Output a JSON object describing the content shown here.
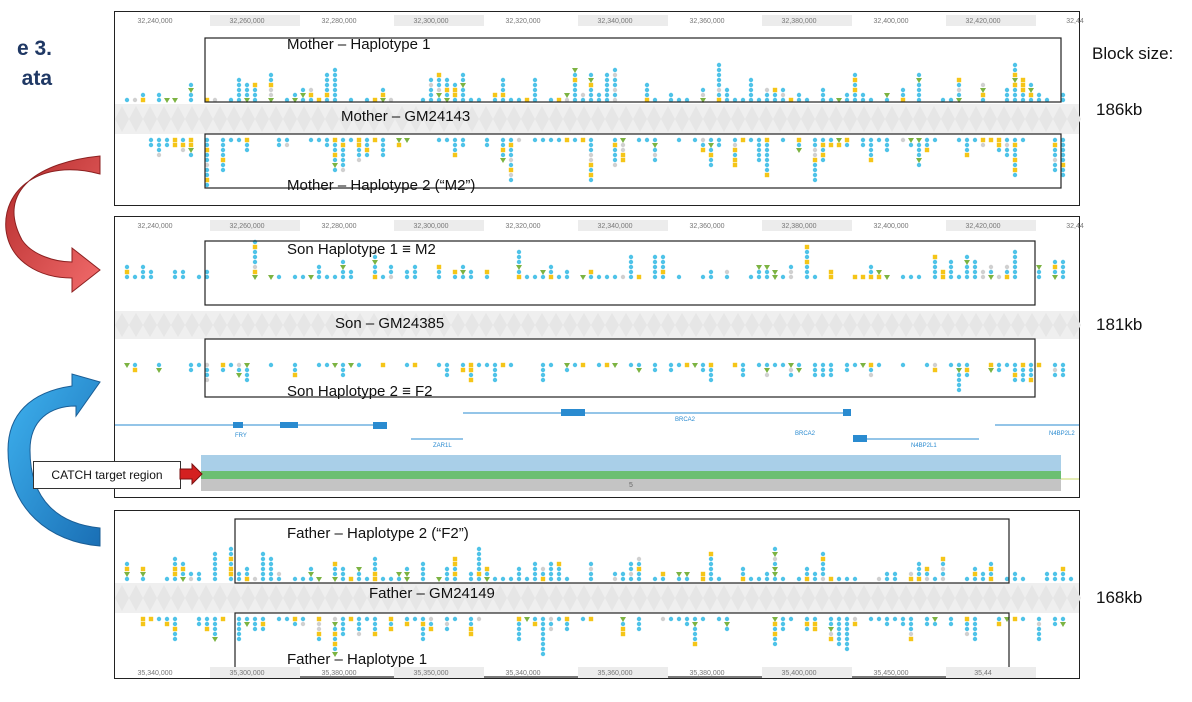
{
  "title": {
    "line1": "e 3.",
    "line2": "ata"
  },
  "block_size_label": "Block size:",
  "callout": "CATCH target region",
  "axis_ticks_top": [
    "32,240,000",
    "32,260,000",
    "32,280,000",
    "32,300,000",
    "32,320,000",
    "32,340,000",
    "32,360,000",
    "32,380,000",
    "32,400,000",
    "32,420,000",
    "32,44"
  ],
  "axis_ticks_bottom": [
    "35,340,000",
    "35,300,000",
    "35,380,000",
    "35,350,000",
    "35,340,000",
    "35,360,000",
    "35,380,000",
    "35,400,000",
    "35,450,000",
    "35,44"
  ],
  "panels": [
    {
      "id": "mother",
      "track": "Mother – GM24143",
      "hap_top": "Mother – Haplotype 1",
      "hap_bottom": "Mother – Haplotype 2 (“M2”)",
      "block": "186kb"
    },
    {
      "id": "son",
      "track": "Son – GM24385",
      "hap_top": "Son Haplotype 1 ≡ M2",
      "hap_bottom": "Son Haplotype 2 ≡ F2",
      "block": "181kb",
      "genes": [
        "FRY",
        "ZAR1L",
        "BRCA2",
        "BRCA2",
        "N4BP2L1",
        "N4BP2L2"
      ],
      "coverage_label": "5"
    },
    {
      "id": "father",
      "track": "Father – GM24149",
      "hap_top": "Father – Haplotype 2 (“F2”)",
      "hap_bottom": "Father – Haplotype 1",
      "block": "168kb"
    }
  ],
  "colors": {
    "snp": "#4fc3e8",
    "indel": "#f5c518",
    "deletion": "#7cb342",
    "ref": "#d0d0d0",
    "arrow_red": "#d9534f",
    "arrow_blue": "#2e8fd6",
    "title": "#1f3864"
  }
}
